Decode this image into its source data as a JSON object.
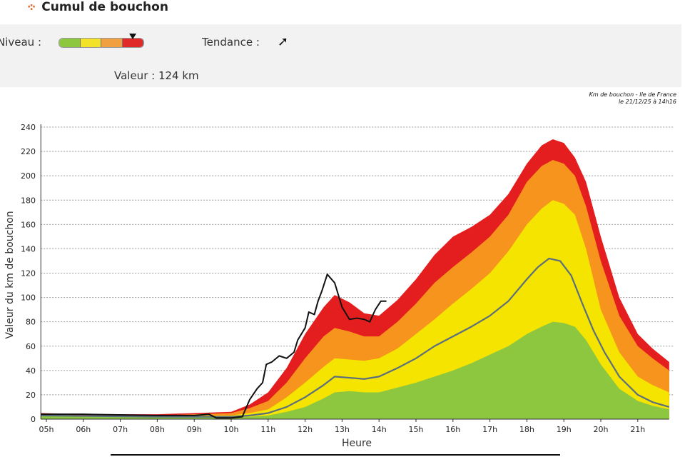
{
  "header": {
    "title": "Cumul de bouchon",
    "icon": "traffic-cross-icon"
  },
  "panel": {
    "niveau_label": "Niveau :",
    "niveau_level": 0.88,
    "gauge_colors": [
      "#8dc63f",
      "#f2e32a",
      "#f0a040",
      "#e02a2a"
    ],
    "tendance_label": "Tendance :",
    "tendance_icon": "arrow-up-right-icon",
    "tendance_glyph": "➚",
    "valeur_label": "Valeur : 124 km"
  },
  "credit": {
    "line1": "Km de bouchon - Ile de France",
    "line2": "le 21/12/25 à 14h16"
  },
  "chart_data": {
    "type": "area",
    "xlabel": "Heure",
    "ylabel": "Valeur du  km de bouchon",
    "ylim": [
      0,
      240
    ],
    "xlim": [
      4.85,
      21.85
    ],
    "yticks": [
      0,
      20,
      40,
      60,
      80,
      100,
      120,
      140,
      160,
      180,
      200,
      220,
      240
    ],
    "xticks": [
      {
        "h": 5,
        "label": "05h"
      },
      {
        "h": 6,
        "label": "06h"
      },
      {
        "h": 7,
        "label": "07h"
      },
      {
        "h": 8,
        "label": "08h"
      },
      {
        "h": 9,
        "label": "09h"
      },
      {
        "h": 10,
        "label": "10h"
      },
      {
        "h": 11,
        "label": "11h"
      },
      {
        "h": 12,
        "label": "12h"
      },
      {
        "h": 13,
        "label": "13h"
      },
      {
        "h": 14,
        "label": "14h"
      },
      {
        "h": 15,
        "label": "15h"
      },
      {
        "h": 16,
        "label": "16h"
      },
      {
        "h": 17,
        "label": "17h"
      },
      {
        "h": 18,
        "label": "18h"
      },
      {
        "h": 19,
        "label": "19h"
      },
      {
        "h": 20,
        "label": "20h"
      },
      {
        "h": 21,
        "label": "21h"
      }
    ],
    "grid": true,
    "x": [
      4.85,
      6,
      8,
      10,
      10.5,
      11,
      11.5,
      12,
      12.5,
      12.8,
      13.2,
      13.6,
      14,
      14.5,
      15,
      15.5,
      16,
      16.5,
      17,
      17.5,
      18,
      18.4,
      18.7,
      19,
      19.3,
      19.6,
      20,
      20.5,
      21,
      21.4,
      21.85
    ],
    "bands": [
      {
        "color": "#e41e1e",
        "values": [
          5,
          4,
          4,
          6,
          12,
          22,
          42,
          70,
          92,
          102,
          96,
          87,
          85,
          98,
          115,
          135,
          150,
          158,
          168,
          185,
          210,
          225,
          230,
          227,
          215,
          195,
          150,
          100,
          70,
          58,
          47
        ]
      },
      {
        "color": "#f7941d",
        "values": [
          4,
          3,
          3,
          5,
          9,
          15,
          30,
          50,
          68,
          75,
          72,
          68,
          68,
          80,
          95,
          112,
          125,
          137,
          150,
          168,
          195,
          208,
          213,
          210,
          200,
          175,
          130,
          85,
          60,
          50,
          40
        ]
      },
      {
        "color": "#f5e400",
        "values": [
          4,
          3,
          3,
          3,
          5,
          8,
          18,
          30,
          43,
          50,
          49,
          48,
          50,
          58,
          70,
          82,
          95,
          107,
          120,
          138,
          160,
          173,
          180,
          177,
          168,
          140,
          90,
          55,
          35,
          28,
          22
        ]
      },
      {
        "color": "#8dc63f",
        "values": [
          3,
          2,
          2,
          2,
          2,
          3,
          6,
          10,
          17,
          22,
          23,
          22,
          22,
          26,
          30,
          35,
          40,
          46,
          53,
          60,
          70,
          76,
          80,
          79,
          76,
          65,
          45,
          25,
          15,
          11,
          8
        ]
      }
    ],
    "series": [
      {
        "color": "#5a6e7e",
        "x": [
          4.85,
          8,
          10,
          10.5,
          11,
          11.5,
          12,
          12.5,
          12.8,
          13.2,
          13.6,
          14,
          14.5,
          15,
          15.5,
          16,
          16.5,
          17,
          17.5,
          18,
          18.3,
          18.6,
          18.9,
          19.2,
          19.5,
          19.8,
          20.1,
          20.5,
          21,
          21.4,
          21.85
        ],
        "values": [
          3,
          2,
          2,
          3,
          5,
          10,
          18,
          28,
          35,
          34,
          33,
          35,
          42,
          50,
          60,
          68,
          76,
          85,
          97,
          115,
          125,
          132,
          130,
          118,
          95,
          73,
          55,
          35,
          20,
          14,
          10
        ]
      },
      {
        "color": "#111111",
        "x": [
          4.85,
          6,
          8,
          9,
          9.4,
          9.6,
          10,
          10.3,
          10.5,
          10.7,
          10.85,
          10.95,
          11.1,
          11.3,
          11.5,
          11.7,
          11.8,
          12,
          12.1,
          12.25,
          12.35,
          12.45,
          12.6,
          12.8,
          13,
          13.2,
          13.4,
          13.6,
          13.75,
          13.9,
          14.05,
          14.2
        ],
        "values": [
          4,
          4,
          3,
          3,
          4,
          1,
          1,
          2,
          16,
          25,
          30,
          45,
          47,
          52,
          50,
          55,
          65,
          75,
          88,
          86,
          97,
          105,
          119,
          112,
          92,
          82,
          83,
          82,
          80,
          90,
          97,
          97
        ]
      }
    ]
  }
}
